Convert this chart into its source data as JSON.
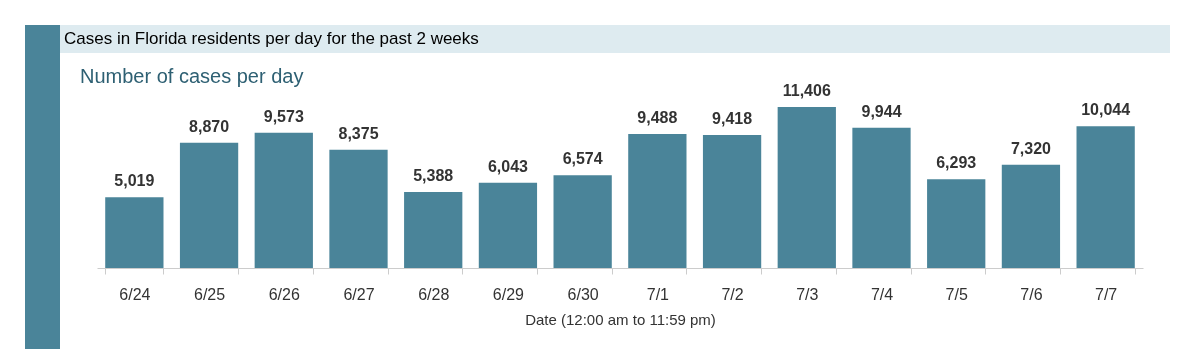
{
  "chart_data": {
    "type": "bar",
    "title": "Cases in Florida residents per day for the past 2 weeks",
    "subtitle": "Number of cases per day",
    "xlabel": "Date (12:00 am to 11:59 pm)",
    "categories": [
      "6/24",
      "6/25",
      "6/26",
      "6/27",
      "6/28",
      "6/29",
      "6/30",
      "7/1",
      "7/2",
      "7/3",
      "7/4",
      "7/5",
      "7/6",
      "7/7"
    ],
    "values": [
      5019,
      8870,
      9573,
      8375,
      5388,
      6043,
      6574,
      9488,
      9418,
      11406,
      9944,
      6293,
      7320,
      10044
    ],
    "value_labels": [
      "5,019",
      "8,870",
      "9,573",
      "8,375",
      "5,388",
      "6,043",
      "6,574",
      "9,488",
      "9,418",
      "11,406",
      "9,944",
      "6,293",
      "7,320",
      "10,044"
    ],
    "color": "#4a8499",
    "tick_labels": "x"
  }
}
